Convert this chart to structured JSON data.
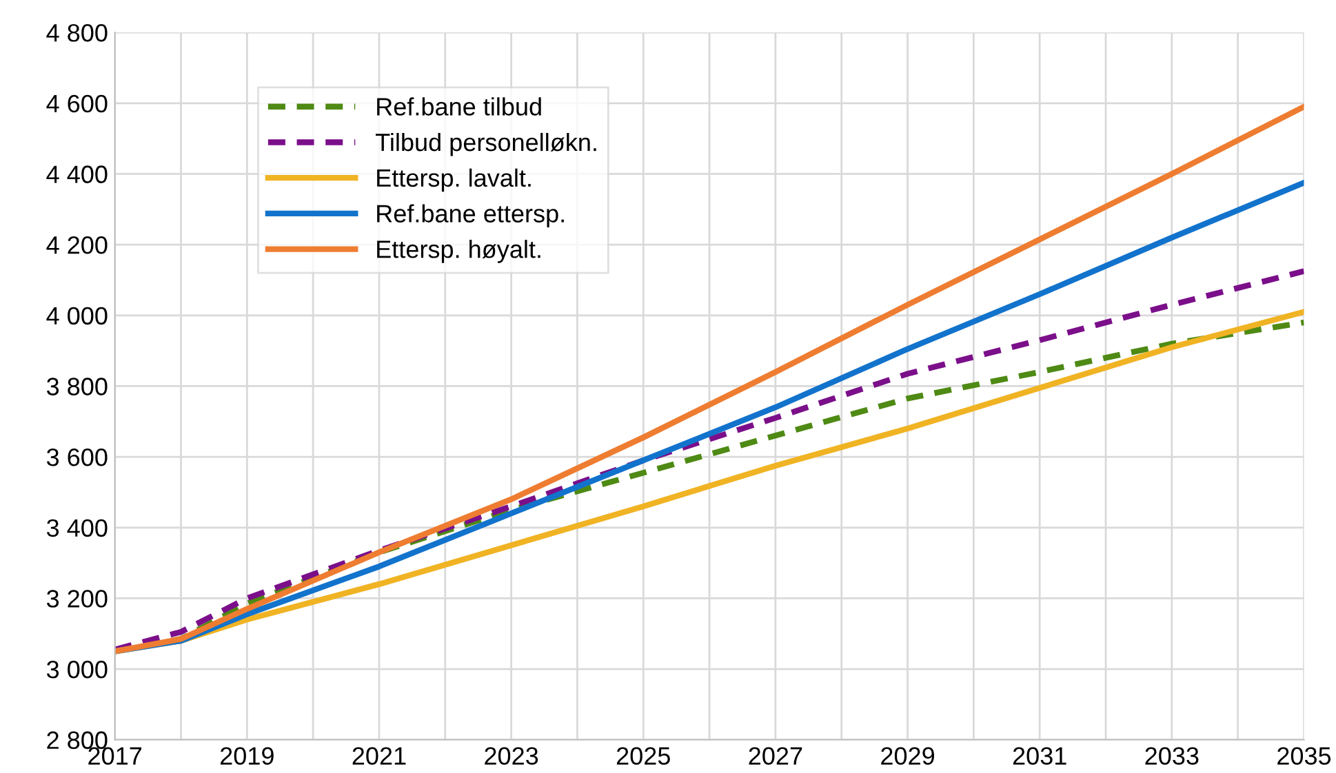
{
  "chart_data": {
    "type": "line",
    "x": [
      2017,
      2018,
      2019,
      2021,
      2023,
      2025,
      2027,
      2029,
      2031,
      2033,
      2035
    ],
    "series": [
      {
        "name": "Ref.bane tilbud",
        "color": "#4e8a14",
        "line_style": "dashed",
        "values": [
          3050,
          3085,
          3185,
          3330,
          3450,
          3555,
          3660,
          3765,
          3840,
          3920,
          3980
        ]
      },
      {
        "name": "Tilbud personelløkn.",
        "color": "#7b0f8a",
        "line_style": "dashed",
        "values": [
          3055,
          3105,
          3200,
          3335,
          3460,
          3590,
          3710,
          3835,
          3930,
          4030,
          4125
        ]
      },
      {
        "name": "Ettersp. lavalt.",
        "color": "#f0b323",
        "line_style": "solid",
        "values": [
          3050,
          3080,
          3140,
          3240,
          3350,
          3460,
          3575,
          3680,
          3795,
          3910,
          4010
        ]
      },
      {
        "name": "Ref.bane ettersp.",
        "color": "#1273cc",
        "line_style": "solid",
        "values": [
          3050,
          3080,
          3155,
          3290,
          3440,
          3590,
          3740,
          3905,
          4060,
          4220,
          4375
        ]
      },
      {
        "name": "Ettersp. høyalt.",
        "color": "#ee7d31",
        "line_style": "solid",
        "values": [
          3050,
          3085,
          3170,
          3330,
          3480,
          3655,
          3840,
          4030,
          4215,
          4400,
          4590
        ]
      }
    ],
    "xlim": [
      2017,
      2035
    ],
    "xticks": [
      2017,
      {
        "value": 2018,
        "label": null
      },
      2019,
      {
        "value": 2020,
        "label": null
      },
      2021,
      {
        "value": 2022,
        "label": null
      },
      2023,
      {
        "value": 2024,
        "label": null
      },
      2025,
      {
        "value": 2026,
        "label": null
      },
      2027,
      {
        "value": 2028,
        "label": null
      },
      2029,
      {
        "value": 2030,
        "label": null
      },
      2031,
      {
        "value": 2032,
        "label": null
      },
      2033,
      {
        "value": 2034,
        "label": null
      },
      2035
    ],
    "ylim": [
      2800,
      4800
    ],
    "yticks": [
      {
        "value": 2800,
        "label": "2 800"
      },
      {
        "value": 3000,
        "label": "3 000"
      },
      {
        "value": 3200,
        "label": "3 200"
      },
      {
        "value": 3400,
        "label": "3 400"
      },
      {
        "value": 3600,
        "label": "3 600"
      },
      {
        "value": 3800,
        "label": "3 800"
      },
      {
        "value": 4000,
        "label": "4 000"
      },
      {
        "value": 4200,
        "label": "4 200"
      },
      {
        "value": 4400,
        "label": "4 400"
      },
      {
        "value": 4600,
        "label": "4 600"
      },
      {
        "value": 4800,
        "label": "4 800"
      }
    ],
    "grid": true,
    "legend": "top left"
  }
}
